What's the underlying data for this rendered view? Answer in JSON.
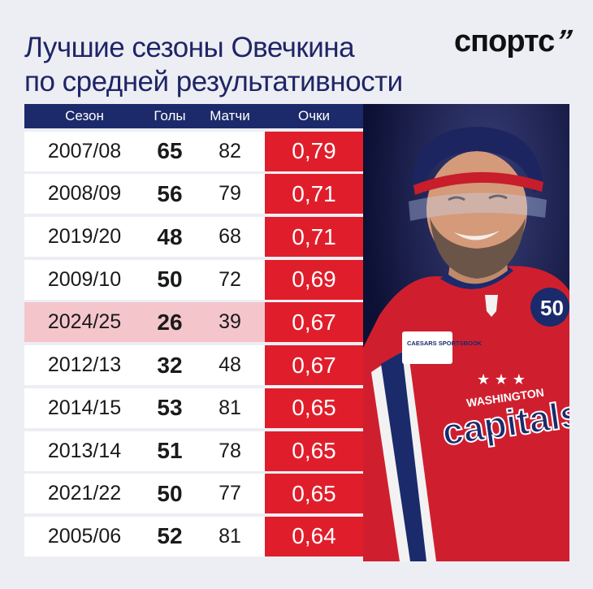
{
  "header": {
    "title_line1": "Лучшие сезоны Овечкина",
    "title_line2": "по средней результативности",
    "logo": "спортс",
    "logo_mark": "’’"
  },
  "chart_data": {
    "type": "table",
    "columns": [
      "Сезон",
      "Голы",
      "Матчи",
      "Очки"
    ],
    "rows": [
      {
        "season": "2007/08",
        "goals": "65",
        "games": "82",
        "points": "0,79"
      },
      {
        "season": "2008/09",
        "goals": "56",
        "games": "79",
        "points": "0,71"
      },
      {
        "season": "2019/20",
        "goals": "48",
        "games": "68",
        "points": "0,71"
      },
      {
        "season": "2009/10",
        "goals": "50",
        "games": "72",
        "points": "0,69"
      },
      {
        "season": "2024/25",
        "goals": "26",
        "games": "39",
        "points": "0,67",
        "highlight": true
      },
      {
        "season": "2012/13",
        "goals": "32",
        "games": "48",
        "points": "0,67"
      },
      {
        "season": "2014/15",
        "goals": "53",
        "games": "81",
        "points": "0,65"
      },
      {
        "season": "2013/14",
        "goals": "51",
        "games": "78",
        "points": "0,65"
      },
      {
        "season": "2021/22",
        "goals": "50",
        "games": "77",
        "points": "0,65"
      },
      {
        "season": "2005/06",
        "goals": "52",
        "games": "81",
        "points": "0,64"
      }
    ]
  },
  "photo": {
    "jersey_text": "WASHINGTON",
    "jersey_logo": "capitals",
    "patch_text": "CAESARS SPORTSBOOK",
    "sleeve_number": "50"
  },
  "colors": {
    "navy": "#1c2a6b",
    "red": "#e01e2b",
    "highlight": "#f5c5cc",
    "background": "#eceef3"
  }
}
